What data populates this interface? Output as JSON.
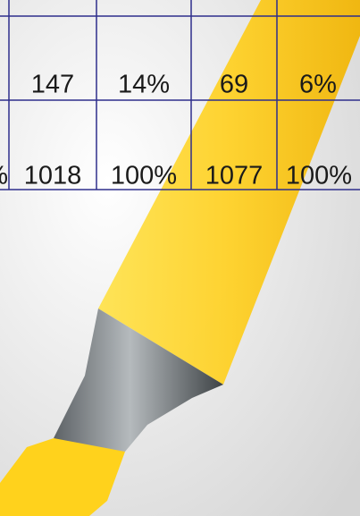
{
  "table": {
    "rows": [
      {
        "cells": [
          "147",
          "14%",
          "69",
          "6%"
        ]
      },
      {
        "lead": "%",
        "cells": [
          "1018",
          "100%",
          "1077",
          "100%"
        ]
      }
    ]
  }
}
